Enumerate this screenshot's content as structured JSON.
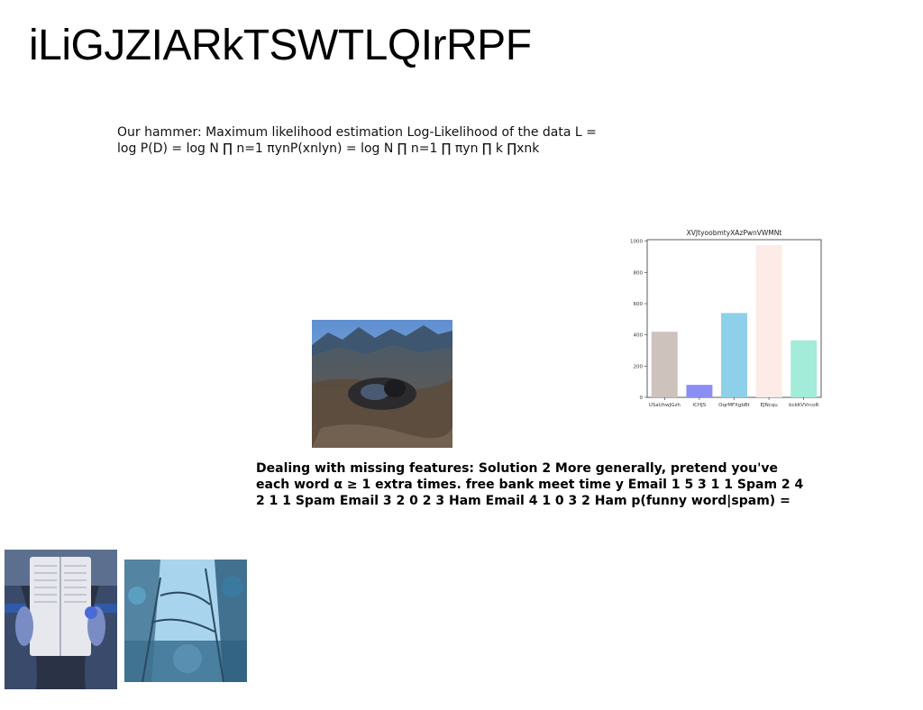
{
  "page": {
    "title": "iLiGJZIARkTSWTLQIrRPF",
    "paragraph_1": "Our hammer: Maximum likelihood estimation Log-Likelihood of the data L = log P(D) = log N ∏ n=1 πynP(xnlyn) = log N ∏ n=1 ∏ πyn ∏ k ∏xnk",
    "paragraph_2": "Dealing with missing features: Solution 2 More generally, pretend you've each word α ≥ 1 extra times. free bank meet time y Email 1 5 3 1 1 Spam 2 4 2 1 1 Spam Email 3 2 0 2 3 Ham Email 4 1 0 3 2 Ham p(funny word|spam) ="
  },
  "chart_data": {
    "type": "bar",
    "title": "XVJtyoobmtyXAzPwnVWMNt",
    "categories": [
      "USaUhwJGzh",
      "lCHJS",
      "OqrMFXgbBt",
      "EJNcqu",
      "bckKVVrcoR"
    ],
    "values": [
      420,
      80,
      540,
      975,
      365
    ],
    "colors": [
      "#cdc2bc",
      "#8b8ef2",
      "#8ecfe9",
      "#fcebe6",
      "#a2ecd9"
    ],
    "ylim": [
      0,
      1010
    ],
    "yticks": [
      0,
      200,
      400,
      600,
      800,
      1000
    ],
    "xlabel": "",
    "ylabel": "",
    "grid": false
  }
}
